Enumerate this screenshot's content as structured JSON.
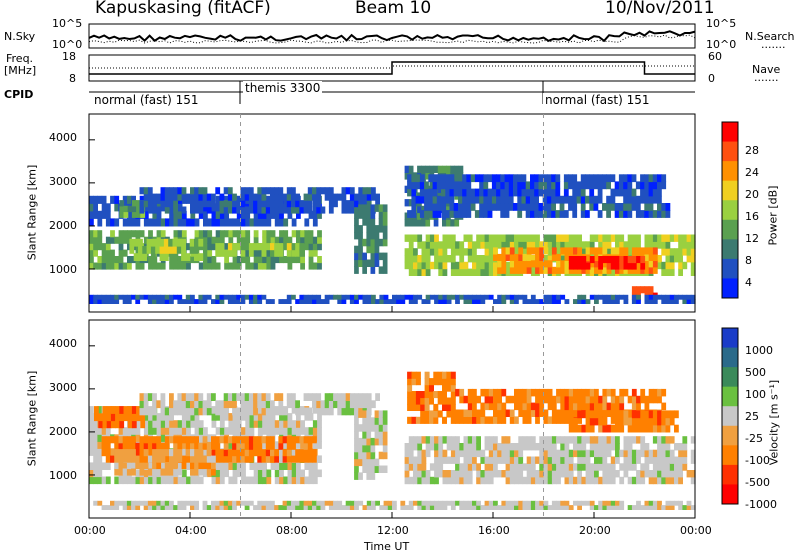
{
  "header": {
    "station": "Kapuskasing (fitACF)",
    "beam": "Beam 10",
    "date": "10/Nov/2011"
  },
  "side_labels": {
    "nsky": "N.Sky",
    "nsearch": "N.Search",
    "freq": "Freq.",
    "mhz": "[MHz]",
    "nave": "Nave",
    "cpid": "CPID",
    "dots": "......."
  },
  "mini_ticks": {
    "sky_left": [
      "10^5",
      "10^0"
    ],
    "sky_right": [
      "10^5",
      "10^0"
    ],
    "freq_left": [
      "18",
      "8"
    ],
    "freq_right": [
      "60",
      "0"
    ]
  },
  "modes": [
    {
      "name": "normal (fast) 151",
      "start_h": 0
    },
    {
      "name": "themis 3300",
      "start_h": 6
    },
    {
      "name": "normal (fast) 151",
      "start_h": 18
    }
  ],
  "panels": {
    "range_ticks": [
      "1000",
      "2000",
      "3000",
      "4000"
    ],
    "ylabel": "Slant Range [km]",
    "xticks": [
      "00:00",
      "04:00",
      "08:00",
      "12:00",
      "16:00",
      "20:00",
      "00:00"
    ],
    "xlabel": "Time UT"
  },
  "colorbars": {
    "power": {
      "label": "Power [dB]",
      "ticks": [
        "4",
        "8",
        "12",
        "16",
        "20",
        "24",
        "28"
      ],
      "colors": [
        "#0020ff",
        "#2050c0",
        "#3c7a70",
        "#5aa050",
        "#9ad040",
        "#f0d020",
        "#ff9000",
        "#ff5010",
        "#ff0000"
      ]
    },
    "velocity": {
      "label": "Velocity [m s⁻¹]",
      "ticks": [
        "1000",
        "500",
        "100",
        "25",
        "-25",
        "-100",
        "-500",
        "-1000"
      ],
      "colors": [
        "#1a3cc8",
        "#2a6a8a",
        "#3a8a5a",
        "#6ac040",
        "#c8c8c8",
        "#f0a040",
        "#ff8000",
        "#ff3000",
        "#ff0000"
      ]
    }
  },
  "chart_data": [
    {
      "type": "heatmap",
      "title": "Power",
      "x": "Time UT (hours)",
      "xlim": [
        0,
        24
      ],
      "ylim": [
        0,
        4600
      ],
      "z_label": "Power [dB]",
      "bands": [
        {
          "t0": 0.0,
          "t1": 9.2,
          "r0": 1000,
          "r1": 1900,
          "level": 3
        },
        {
          "t0": 0.0,
          "t1": 9.2,
          "r0": 2000,
          "r1": 2700,
          "level": 1
        },
        {
          "t0": 1.2,
          "t1": 2.2,
          "r0": 2200,
          "r1": 2600,
          "level": 3
        },
        {
          "t0": 1.6,
          "t1": 4.5,
          "r0": 1200,
          "r1": 1700,
          "level": 4
        },
        {
          "t0": 5.0,
          "t1": 8.5,
          "r0": 1300,
          "r1": 1600,
          "level": 4
        },
        {
          "t0": 2.0,
          "t1": 11.5,
          "r0": 2300,
          "r1": 2900,
          "level": 1
        },
        {
          "t0": 10.5,
          "t1": 11.8,
          "r0": 900,
          "r1": 2500,
          "level": 2
        },
        {
          "t0": 12.5,
          "t1": 14.8,
          "r0": 2000,
          "r1": 3400,
          "level": 2
        },
        {
          "t0": 12.6,
          "t1": 23.0,
          "r0": 2200,
          "r1": 3200,
          "level": 1
        },
        {
          "t0": 12.5,
          "t1": 24.0,
          "r0": 850,
          "r1": 1800,
          "level": 4
        },
        {
          "t0": 16.0,
          "t1": 22.5,
          "r0": 900,
          "r1": 1500,
          "level": 6
        },
        {
          "t0": 19.0,
          "t1": 22.0,
          "r0": 1000,
          "r1": 1300,
          "level": 8
        },
        {
          "t0": 21.5,
          "t1": 22.5,
          "r0": 300,
          "r1": 600,
          "level": 7
        },
        {
          "t0": 0.0,
          "t1": 24.0,
          "r0": 200,
          "r1": 400,
          "level": 1
        }
      ]
    },
    {
      "type": "heatmap",
      "title": "Velocity",
      "x": "Time UT (hours)",
      "xlim": [
        0,
        24
      ],
      "ylim": [
        0,
        4600
      ],
      "z_label": "Velocity [m s-1]",
      "bands": [
        {
          "t0": 0.0,
          "t1": 9.2,
          "r0": 800,
          "r1": 2600,
          "level": 4
        },
        {
          "t0": 0.2,
          "t1": 2.2,
          "r0": 2100,
          "r1": 2600,
          "level": 6
        },
        {
          "t0": 0.5,
          "t1": 9.0,
          "r0": 1300,
          "r1": 1900,
          "level": 6
        },
        {
          "t0": 1.0,
          "t1": 5.0,
          "r0": 1000,
          "r1": 1600,
          "level": 5
        },
        {
          "t0": 2.0,
          "t1": 11.5,
          "r0": 2400,
          "r1": 2900,
          "level": 4
        },
        {
          "t0": 10.5,
          "t1": 11.8,
          "r0": 900,
          "r1": 2500,
          "level": 4
        },
        {
          "t0": 12.5,
          "t1": 24.0,
          "r0": 800,
          "r1": 1900,
          "level": 4
        },
        {
          "t0": 12.6,
          "t1": 14.5,
          "r0": 2200,
          "r1": 3400,
          "level": 6
        },
        {
          "t0": 14.5,
          "t1": 23.0,
          "r0": 2200,
          "r1": 3000,
          "level": 6
        },
        {
          "t0": 19.0,
          "t1": 23.5,
          "r0": 2000,
          "r1": 2500,
          "level": 6
        },
        {
          "t0": 0.0,
          "t1": 24.0,
          "r0": 200,
          "r1": 400,
          "level": 4
        }
      ]
    }
  ]
}
